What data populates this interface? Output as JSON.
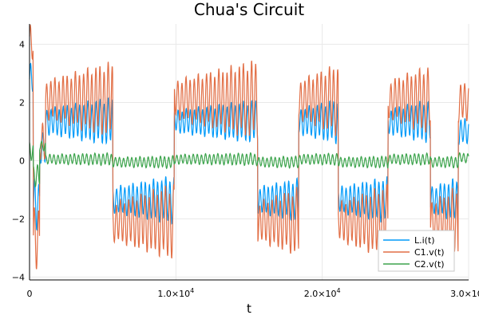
{
  "chart_data": {
    "type": "line",
    "title": "Chua's Circuit",
    "xlabel": "t",
    "ylabel": "",
    "xlim": [
      0,
      30000
    ],
    "ylim": [
      -4.1,
      4.7
    ],
    "grid": true,
    "legend_position": "bottom-right",
    "x_ticks": [
      {
        "value": 0,
        "label": "0"
      },
      {
        "value": 10000,
        "label": "1.0×10"
      },
      {
        "value": 20000,
        "label": "2.0×10"
      },
      {
        "value": 30000,
        "label": "3.0×10"
      }
    ],
    "x_tick_exponent": "4",
    "y_ticks": [
      {
        "value": -4,
        "label": "−4"
      },
      {
        "value": -2,
        "label": "−2"
      },
      {
        "value": 0,
        "label": "0"
      },
      {
        "value": 2,
        "label": "2"
      },
      {
        "value": 4,
        "label": "4"
      }
    ],
    "series": [
      {
        "name": "L.i(t)",
        "color": "#009af9",
        "regimes": [
          {
            "start": 0,
            "end": 250,
            "center": 2.8,
            "amp": 0.5,
            "grow": 0
          },
          {
            "start": 250,
            "end": 700,
            "center": -1.5,
            "amp": 0.8,
            "grow": 0
          },
          {
            "start": 700,
            "end": 1100,
            "center": 0.4,
            "amp": 0.5,
            "grow": 0
          },
          {
            "start": 1100,
            "end": 5700,
            "center": 1.35,
            "amp": 0.4,
            "grow": 0.9
          },
          {
            "start": 5700,
            "end": 9900,
            "center": -1.35,
            "amp": 0.4,
            "grow": 0.9
          },
          {
            "start": 9900,
            "end": 15600,
            "center": 1.35,
            "amp": 0.35,
            "grow": 0.95
          },
          {
            "start": 15600,
            "end": 18400,
            "center": -1.35,
            "amp": 0.4,
            "grow": 0.7
          },
          {
            "start": 18400,
            "end": 21100,
            "center": 1.35,
            "amp": 0.4,
            "grow": 0.75
          },
          {
            "start": 21100,
            "end": 24500,
            "center": -1.35,
            "amp": 0.4,
            "grow": 0.8
          },
          {
            "start": 24500,
            "end": 27400,
            "center": 1.35,
            "amp": 0.4,
            "grow": 0.7
          },
          {
            "start": 27400,
            "end": 29300,
            "center": -1.35,
            "amp": 0.4,
            "grow": 0.75
          },
          {
            "start": 29300,
            "end": 30000,
            "center": 1.0,
            "amp": 0.4,
            "grow": 0
          }
        ],
        "period": 280,
        "phase": 0
      },
      {
        "name": "C1.v(t)",
        "color": "#e26f46",
        "regimes": [
          {
            "start": 0,
            "end": 250,
            "center": 4.0,
            "amp": 0.6,
            "grow": 0
          },
          {
            "start": 250,
            "end": 700,
            "center": -2.6,
            "amp": 1.0,
            "grow": 0
          },
          {
            "start": 700,
            "end": 1100,
            "center": 0.6,
            "amp": 0.6,
            "grow": 0
          },
          {
            "start": 1100,
            "end": 5700,
            "center": 2.1,
            "amp": 0.6,
            "grow": 1.0
          },
          {
            "start": 5700,
            "end": 9900,
            "center": -2.1,
            "amp": 0.6,
            "grow": 1.0
          },
          {
            "start": 9900,
            "end": 15600,
            "center": 2.1,
            "amp": 0.6,
            "grow": 1.1
          },
          {
            "start": 15600,
            "end": 18400,
            "center": -2.1,
            "amp": 0.6,
            "grow": 0.8
          },
          {
            "start": 18400,
            "end": 21100,
            "center": 2.1,
            "amp": 0.6,
            "grow": 0.9
          },
          {
            "start": 21100,
            "end": 24500,
            "center": -2.1,
            "amp": 0.6,
            "grow": 0.95
          },
          {
            "start": 24500,
            "end": 27400,
            "center": 2.1,
            "amp": 0.6,
            "grow": 0.8
          },
          {
            "start": 27400,
            "end": 29300,
            "center": -2.1,
            "amp": 0.6,
            "grow": 0.9
          },
          {
            "start": 29300,
            "end": 30000,
            "center": 2.0,
            "amp": 0.6,
            "grow": 0
          }
        ],
        "period": 280,
        "phase": 0.4
      },
      {
        "name": "C2.v(t)",
        "color": "#3da44d",
        "regimes": [
          {
            "start": 0,
            "end": 250,
            "center": 0.3,
            "amp": 0.3,
            "grow": 0
          },
          {
            "start": 250,
            "end": 700,
            "center": -0.5,
            "amp": 0.35,
            "grow": 0
          },
          {
            "start": 700,
            "end": 1100,
            "center": 0.5,
            "amp": 0.15,
            "grow": 0
          },
          {
            "start": 1100,
            "end": 5700,
            "center": 0.05,
            "amp": 0.15,
            "grow": 0.3
          },
          {
            "start": 5700,
            "end": 9900,
            "center": -0.05,
            "amp": 0.15,
            "grow": 0.3
          },
          {
            "start": 9900,
            "end": 15600,
            "center": 0.05,
            "amp": 0.15,
            "grow": 0.3
          },
          {
            "start": 15600,
            "end": 18400,
            "center": -0.05,
            "amp": 0.15,
            "grow": 0.25
          },
          {
            "start": 18400,
            "end": 21100,
            "center": 0.05,
            "amp": 0.15,
            "grow": 0.25
          },
          {
            "start": 21100,
            "end": 24500,
            "center": -0.05,
            "amp": 0.15,
            "grow": 0.25
          },
          {
            "start": 24500,
            "end": 27400,
            "center": 0.05,
            "amp": 0.15,
            "grow": 0.25
          },
          {
            "start": 27400,
            "end": 29300,
            "center": -0.05,
            "amp": 0.15,
            "grow": 0.25
          },
          {
            "start": 29300,
            "end": 30000,
            "center": 0.1,
            "amp": 0.15,
            "grow": 0
          }
        ],
        "period": 280,
        "phase": 1.9
      }
    ]
  }
}
